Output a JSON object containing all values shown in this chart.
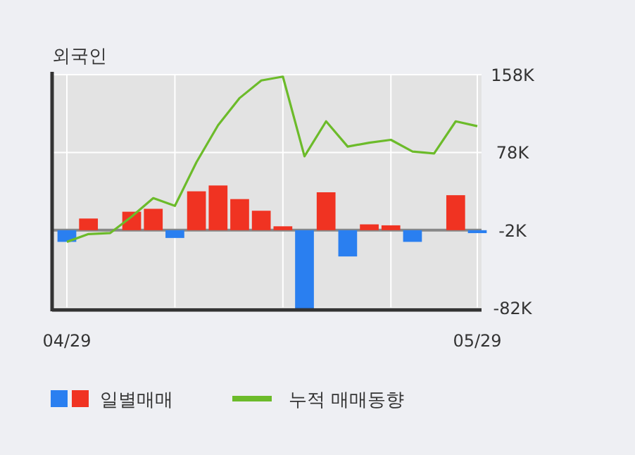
{
  "chart_data": {
    "type": "bar",
    "title": "외국인",
    "categories": [
      "04/29",
      null,
      null,
      null,
      null,
      null,
      null,
      null,
      null,
      null,
      null,
      null,
      null,
      null,
      null,
      null,
      null,
      null,
      null,
      "05/29"
    ],
    "series": [
      {
        "name": "일별매매",
        "values": [
          -14,
          10,
          null,
          17,
          20,
          -10,
          38,
          44,
          30,
          18,
          2,
          -83,
          37,
          -29,
          4,
          3,
          -14,
          null,
          34,
          -5
        ],
        "colors": [
          "#2a7ff0",
          "#f03322",
          "#f03322",
          "#f03322",
          "#f03322",
          "#2a7ff0",
          "#f03322",
          "#f03322",
          "#f03322",
          "#f03322",
          "#f03322",
          "#2a7ff0",
          "#f03322",
          "#2a7ff0",
          "#f03322",
          "#f03322",
          "#2a7ff0",
          "#f03322",
          "#f03322",
          "#2a7ff0"
        ]
      },
      {
        "type": "line",
        "name": "누적 매매동향",
        "color": "#6cbb2a",
        "values": [
          -14,
          -6,
          -5,
          12,
          31,
          23,
          68,
          106,
          134,
          152,
          156,
          74,
          110,
          84,
          88,
          91,
          79,
          77,
          110,
          105
        ]
      }
    ],
    "ylim": [
      -84,
      158
    ],
    "yticks": [
      {
        "value": 158,
        "label": "158K"
      },
      {
        "value": 78,
        "label": "78K"
      },
      {
        "value": -2,
        "label": "-2K"
      },
      {
        "value": -82,
        "label": "-82K"
      }
    ],
    "grid": true,
    "legend": "bottom",
    "ref_lines": [
      {
        "axis": "y",
        "value": -2,
        "color": "#888888"
      }
    ]
  }
}
